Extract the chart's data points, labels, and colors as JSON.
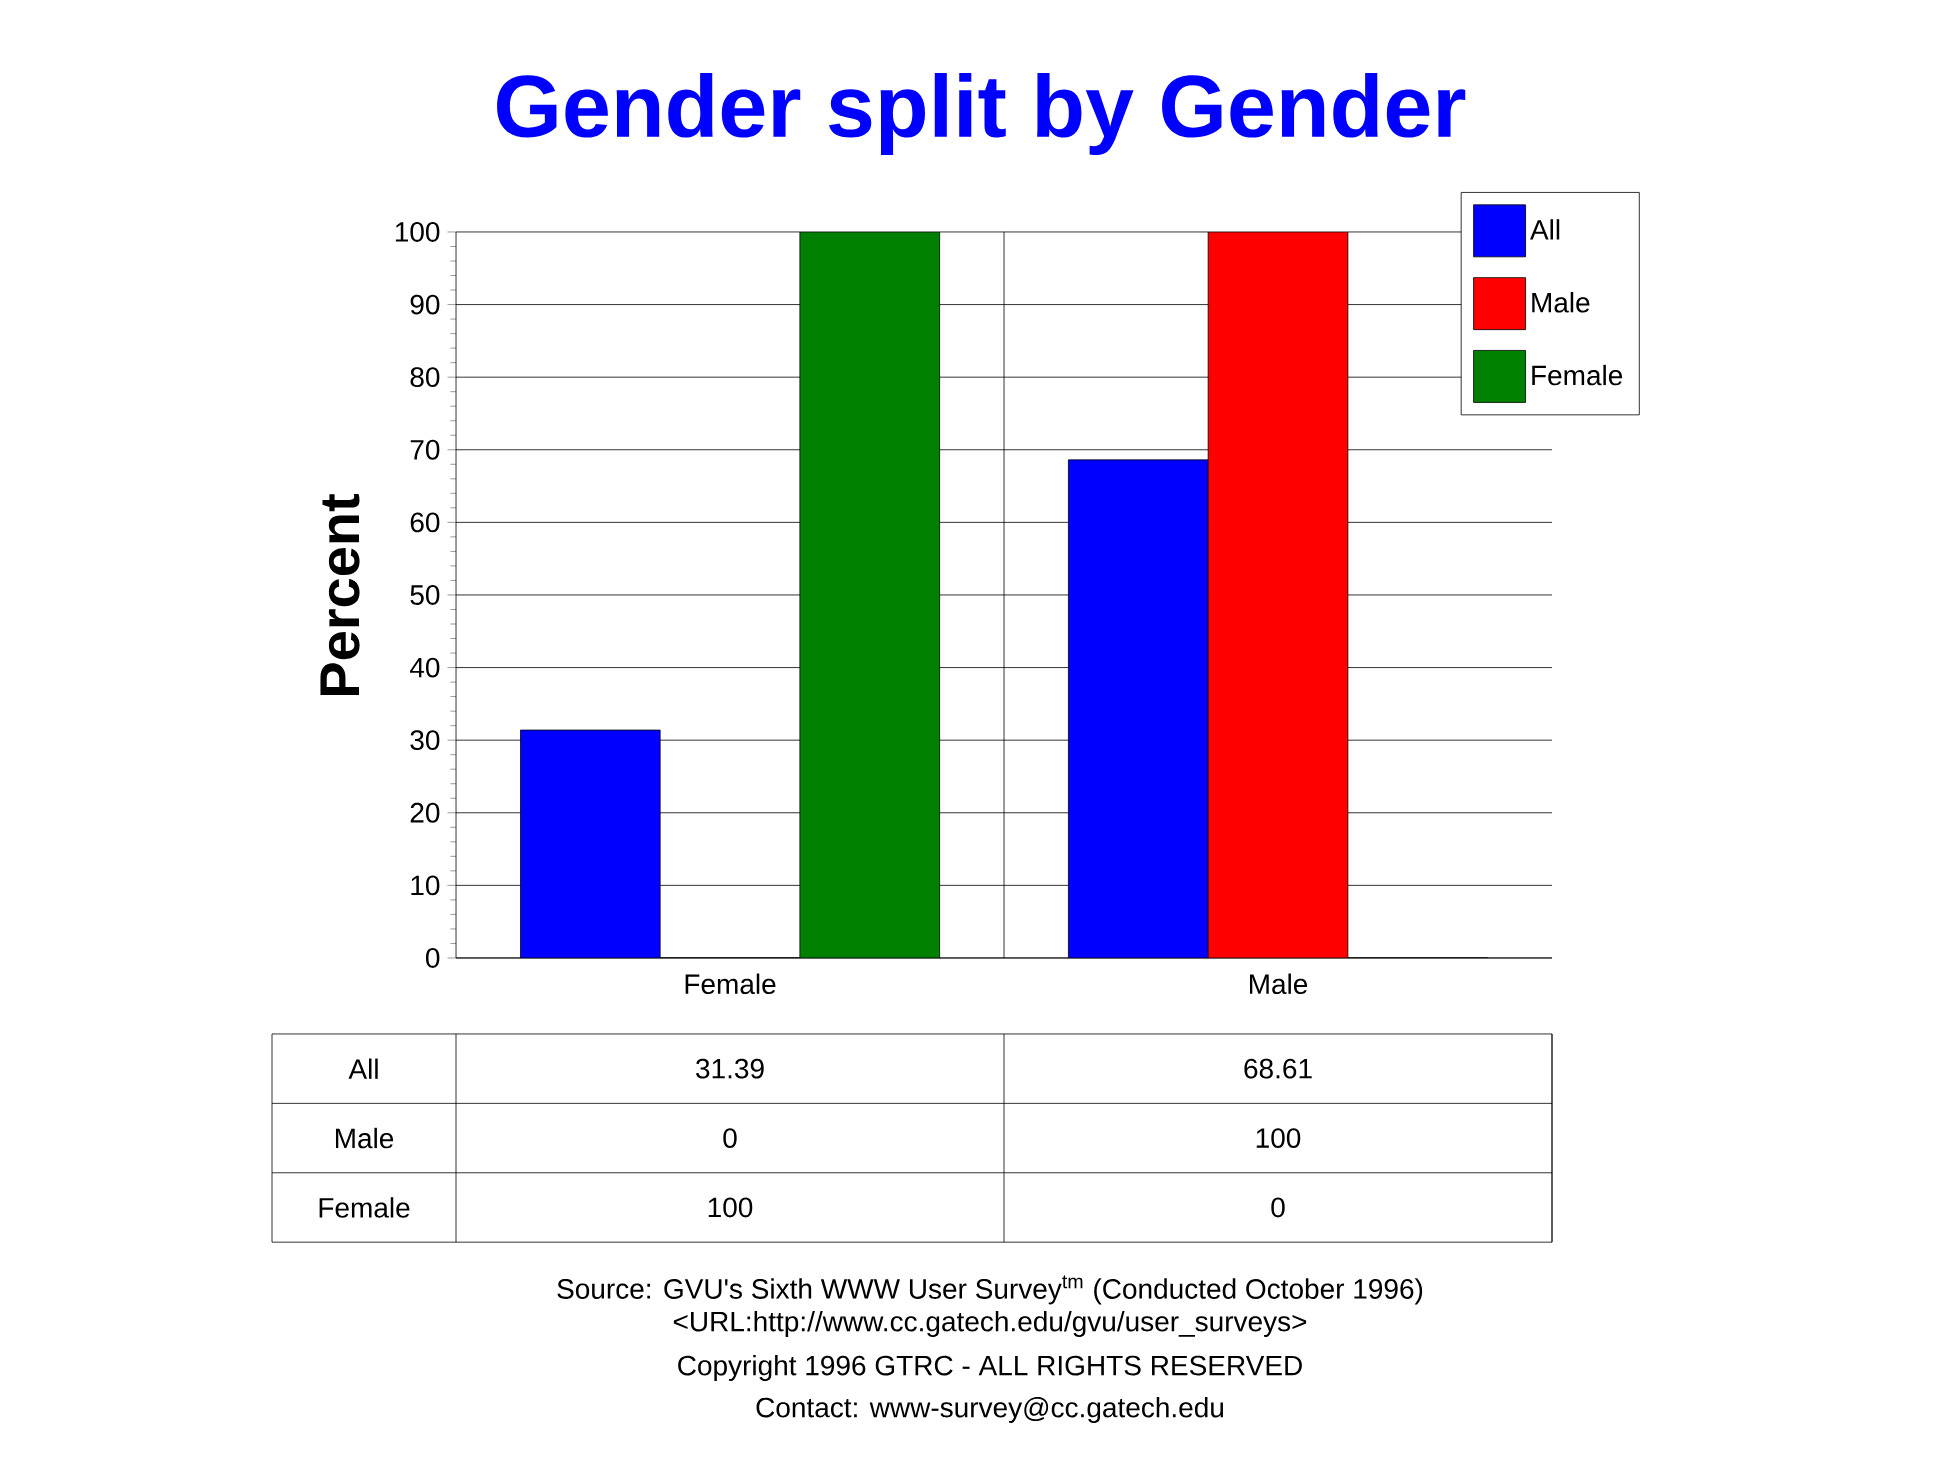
{
  "chart_data": {
    "type": "bar",
    "title": "Gender split by Gender",
    "ylabel": "Percent",
    "categories": [
      "Female",
      "Male"
    ],
    "series": [
      {
        "name": "All",
        "color": "#0000ff",
        "values": [
          31.39,
          68.61
        ]
      },
      {
        "name": "Male",
        "color": "#ff0000",
        "values": [
          0,
          100
        ]
      },
      {
        "name": "Female",
        "color": "#008000",
        "values": [
          100,
          0
        ]
      }
    ],
    "ylim": [
      0,
      100
    ],
    "yticks": [
      0,
      10,
      20,
      30,
      40,
      50,
      60,
      70,
      80,
      90,
      100
    ],
    "grid": "y",
    "legend": "top right",
    "data_labels": true,
    "annotations": [
      "Source: GVU's Sixth WWW User Survey$^{tm}$  (Conducted October 1996)",
      "<URL:http://www.cc.gatech.edu/gvu/user_surveys>",
      "Copyright 1996 GTRC -  ALL RIGHTS RESERVED",
      "Contact: www-survey@cc.gatech.edu"
    ]
  }
}
